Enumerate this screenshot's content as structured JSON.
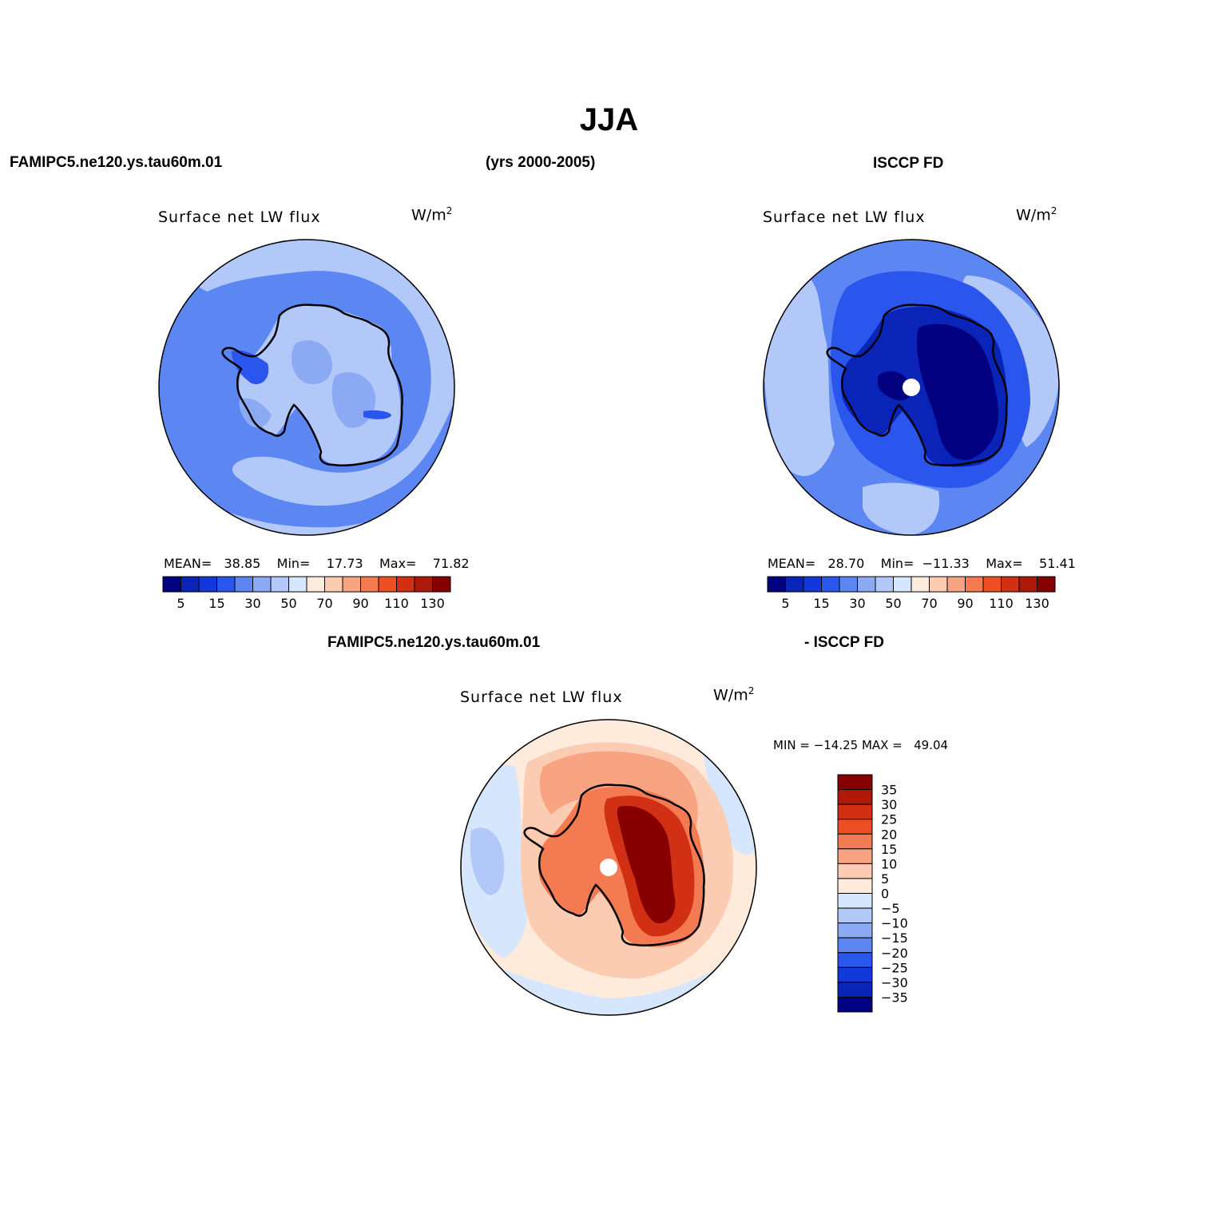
{
  "page": {
    "title": "JJA",
    "model_label": "FAMIPC5.ne120.ys.tau60m.01",
    "years_label": "(yrs 2000-2005)",
    "obs_label": "ISCCP FD",
    "diff_model_label": "FAMIPC5.ne120.ys.tau60m.01",
    "diff_obs_label": "- ISCCP FD"
  },
  "panels": [
    {
      "id": "model",
      "variable": "Surface net LW flux",
      "units": "W/m",
      "units_exp": "2",
      "stats": {
        "mean_label": "MEAN=",
        "mean": "38.85",
        "min_label": "Min=",
        "min": "17.73",
        "max_label": "Max=",
        "max": "71.82"
      }
    },
    {
      "id": "obs",
      "variable": "Surface net LW flux",
      "units": "W/m",
      "units_exp": "2",
      "stats": {
        "mean_label": "MEAN=",
        "mean": "28.70",
        "min_label": "Min=",
        "min": "−11.33",
        "max_label": "Max=",
        "max": "51.41"
      }
    },
    {
      "id": "diff",
      "variable": "Surface net LW flux",
      "units": "W/m",
      "units_exp": "2",
      "minmax": "MIN = −14.25 MAX =   49.04"
    }
  ],
  "colorbar_h": {
    "colors": [
      "#000080",
      "#0a24b8",
      "#1238dc",
      "#2a56ee",
      "#5c86f2",
      "#8caaf4",
      "#b2c8f8",
      "#d6e6fc",
      "#feebdc",
      "#fcccb2",
      "#f8a482",
      "#f47a52",
      "#ee4e24",
      "#d23014",
      "#ae1a0a",
      "#860000"
    ],
    "tick_labels": [
      "5",
      "15",
      "30",
      "50",
      "70",
      "90",
      "110",
      "130"
    ]
  },
  "colorbar_v": {
    "colors": [
      "#860000",
      "#ae1a0a",
      "#d23014",
      "#ee4e24",
      "#f47a52",
      "#f8a482",
      "#fcccb2",
      "#feebdc",
      "#d6e6fc",
      "#b2c8f8",
      "#8caaf4",
      "#5c86f2",
      "#2a56ee",
      "#1238dc",
      "#0a24b8",
      "#000080"
    ],
    "tick_labels": [
      "35",
      "30",
      "25",
      "20",
      "15",
      "10",
      "5",
      "0",
      "−5",
      "−10",
      "−15",
      "−20",
      "−25",
      "−30",
      "−35"
    ]
  },
  "map_colors": {
    "deep": "#000080",
    "dark": "#0a24b8",
    "mid": "#2a56ee",
    "medium": "#5c86f2",
    "light": "#8caaf4",
    "pale": "#b2c8f8",
    "palest": "#d6e6fc",
    "warm0": "#feebdc",
    "warm1": "#fcccb2",
    "warm2": "#f8a482",
    "warm3": "#f47a52",
    "warm4": "#ee4e24",
    "warm5": "#d23014",
    "warm6": "#ae1a0a",
    "warm7": "#860000"
  }
}
